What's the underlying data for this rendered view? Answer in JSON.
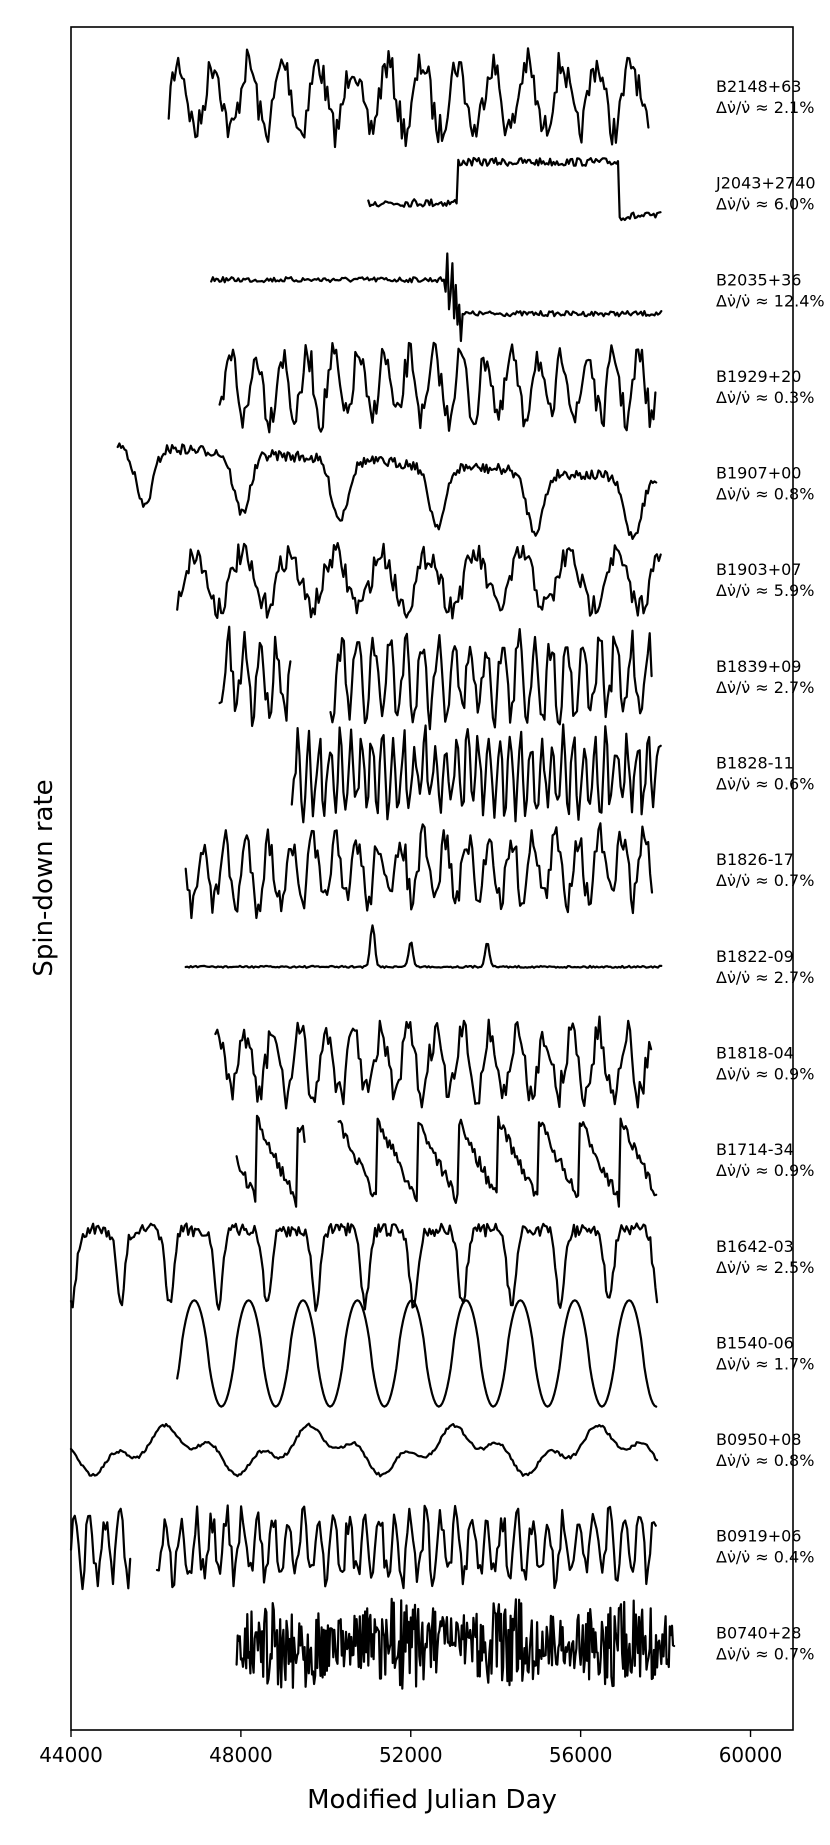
{
  "chart_data": {
    "type": "line",
    "xlabel": "Modified Julian Day",
    "ylabel": "Spin-down rate",
    "xlim": [
      44000,
      61000
    ],
    "xticks": [
      44000,
      48000,
      52000,
      56000,
      60000
    ],
    "xtick_labels": [
      "44000",
      "48000",
      "52000",
      "56000",
      "60000"
    ],
    "grid": false,
    "series": [
      {
        "name": "B2148+63",
        "label2": "Δν̇/ν̇ ≈ 2.1%",
        "x_range": [
          46300,
          57600
        ],
        "amplitude": 0.9,
        "style": "oscillating",
        "period_days": 820,
        "trend": 0
      },
      {
        "name": "J2043+2740",
        "label2": "Δν̇/ν̇ ≈ 6.0%",
        "x_range": [
          51000,
          57900
        ],
        "amplitude": 0.85,
        "style": "step-high",
        "step_at": 53100,
        "step_back": 56900
      },
      {
        "name": "B2035+36",
        "label2": "Δν̇/ν̇ ≈ 12.4%",
        "x_range": [
          47300,
          57900
        ],
        "amplitude": 0.8,
        "style": "step-drop",
        "step_at": 53000
      },
      {
        "name": "B1929+20",
        "label2": "Δν̇/ν̇ ≈ 0.3%",
        "x_range": [
          47500,
          57800
        ],
        "amplitude": 0.85,
        "style": "oscillating",
        "period_days": 600,
        "trend": 0
      },
      {
        "name": "B1907+00",
        "label2": "Δν̇/ν̇ ≈ 0.8%",
        "x_range": [
          45100,
          57800
        ],
        "amplitude": 0.8,
        "style": "peaks",
        "period_days": 2300,
        "trend": -0.4
      },
      {
        "name": "B1903+07",
        "label2": "Δν̇/ν̇ ≈ 5.9%",
        "x_range": [
          46500,
          57900
        ],
        "amplitude": 0.7,
        "style": "oscillating",
        "period_days": 1100,
        "trend": 0
      },
      {
        "name": "B1839+09",
        "label2": "Δν̇/ν̇ ≈ 2.7%",
        "x_range": [
          47500,
          57700
        ],
        "amplitude": 0.95,
        "style": "oscillating-gap",
        "period_days": 380,
        "gap": [
          49200,
          50100
        ]
      },
      {
        "name": "B1828-11",
        "label2": "Δν̇/ν̇ ≈ 0.6%",
        "x_range": [
          49200,
          57900
        ],
        "amplitude": 0.9,
        "style": "oscillating",
        "period_days": 250,
        "trend": 0
      },
      {
        "name": "B1826-17",
        "label2": "Δν̇/ν̇ ≈ 0.7%",
        "x_range": [
          46700,
          57700
        ],
        "amplitude": 0.85,
        "style": "oscillating",
        "period_days": 520,
        "trend": 0.1
      },
      {
        "name": "B1822-09",
        "label2": "Δν̇/ν̇ ≈ 2.7%",
        "x_range": [
          46700,
          57900
        ],
        "amplitude": 0.6,
        "style": "spikes",
        "spikes_at": [
          51100,
          52000,
          53800
        ]
      },
      {
        "name": "B1818-04",
        "label2": "Δν̇/ν̇ ≈ 0.9%",
        "x_range": [
          47400,
          57700
        ],
        "amplitude": 0.85,
        "style": "oscillating",
        "period_days": 640,
        "trend": 0
      },
      {
        "name": "B1714-34",
        "label2": "Δν̇/ν̇ ≈ 0.9%",
        "x_range": [
          47900,
          57800
        ],
        "amplitude": 0.85,
        "style": "sawtooth-gap",
        "period_days": 950,
        "gap": [
          49500,
          50300
        ]
      },
      {
        "name": "B1642-03",
        "label2": "Δν̇/ν̇ ≈ 2.5%",
        "x_range": [
          44000,
          57800
        ],
        "amplitude": 1.0,
        "style": "peaks",
        "period_days": 1150,
        "trend": 0
      },
      {
        "name": "B1540-06",
        "label2": "Δν̇/ν̇ ≈ 1.7%",
        "x_range": [
          46500,
          57800
        ],
        "amplitude": 1.0,
        "style": "sine",
        "period_days": 1280,
        "trend": 0
      },
      {
        "name": "B0950+08",
        "label2": "Δν̇/ν̇ ≈ 0.8%",
        "x_range": [
          44000,
          57800
        ],
        "amplitude": 0.6,
        "style": "broad-bumps",
        "period_days": 3400,
        "trend": 0
      },
      {
        "name": "B0919+06",
        "label2": "Δν̇/ν̇ ≈ 0.4%",
        "x_range": [
          44000,
          57800
        ],
        "amplitude": 0.8,
        "style": "oscillating-gap",
        "period_days": 360,
        "gap": [
          45400,
          46000
        ]
      },
      {
        "name": "B0740+28",
        "label2": "Δν̇/ν̇ ≈ 0.7%",
        "x_range": [
          47900,
          58200
        ],
        "amplitude": 0.95,
        "style": "noise",
        "period_days": 120,
        "trend": 0
      }
    ]
  }
}
